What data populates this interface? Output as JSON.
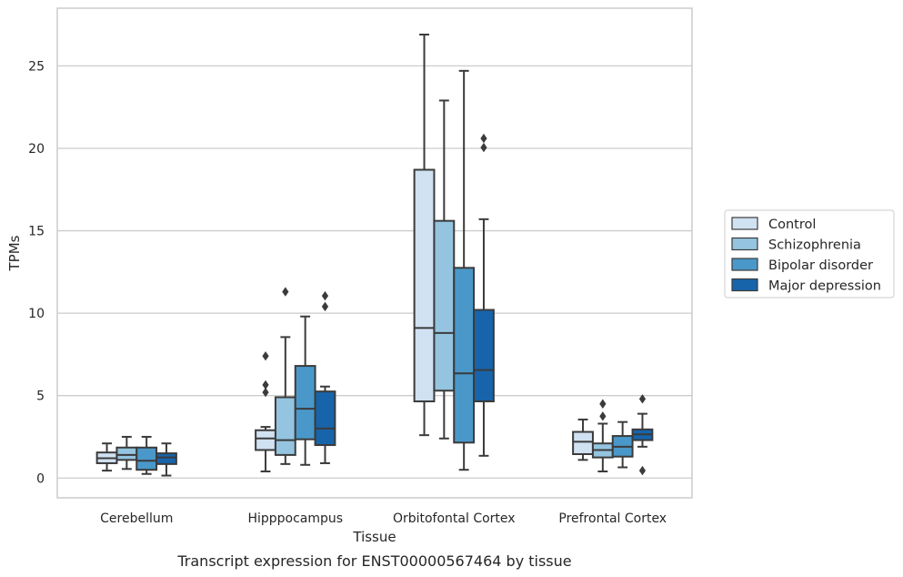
{
  "chart_data": {
    "type": "box",
    "title": "",
    "caption": "Transcript expression for ENST00000567464 by tissue",
    "xlabel": "Tissue",
    "ylabel": "TPMs",
    "ylim": [
      -1.2,
      28.5
    ],
    "yticks": [
      0,
      5,
      10,
      15,
      20,
      25
    ],
    "grid": "horizontal",
    "legend_position": "right",
    "categories": [
      "Cerebellum",
      "Hipppocampus",
      "Orbitofontal Cortex",
      "Prefrontal Cortex"
    ],
    "series": [
      {
        "name": "Control",
        "color": "#d0e1f2",
        "boxes": [
          {
            "whisker_low": 0.45,
            "q1": 0.9,
            "median": 1.2,
            "q3": 1.55,
            "whisker_high": 2.1,
            "outliers": []
          },
          {
            "whisker_low": 0.4,
            "q1": 1.7,
            "median": 2.4,
            "q3": 2.9,
            "whisker_high": 3.1,
            "outliers": [
              5.2,
              5.65,
              7.4
            ]
          },
          {
            "whisker_low": 2.6,
            "q1": 4.65,
            "median": 9.1,
            "q3": 18.7,
            "whisker_high": 26.9,
            "outliers": []
          },
          {
            "whisker_low": 1.1,
            "q1": 1.45,
            "median": 2.2,
            "q3": 2.8,
            "whisker_high": 3.55,
            "outliers": []
          }
        ]
      },
      {
        "name": "Schizophrenia",
        "color": "#94c4df",
        "boxes": [
          {
            "whisker_low": 0.55,
            "q1": 1.1,
            "median": 1.4,
            "q3": 1.85,
            "whisker_high": 2.5,
            "outliers": []
          },
          {
            "whisker_low": 0.85,
            "q1": 1.4,
            "median": 2.3,
            "q3": 4.9,
            "whisker_high": 8.55,
            "outliers": [
              11.3
            ]
          },
          {
            "whisker_low": 2.4,
            "q1": 5.3,
            "median": 8.8,
            "q3": 15.6,
            "whisker_high": 22.9,
            "outliers": []
          },
          {
            "whisker_low": 0.4,
            "q1": 1.25,
            "median": 1.7,
            "q3": 2.1,
            "whisker_high": 3.3,
            "outliers": [
              3.75,
              4.5
            ]
          }
        ]
      },
      {
        "name": "Bipolar disorder",
        "color": "#4a98c9",
        "boxes": [
          {
            "whisker_low": 0.25,
            "q1": 0.5,
            "median": 1.05,
            "q3": 1.85,
            "whisker_high": 2.5,
            "outliers": []
          },
          {
            "whisker_low": 0.8,
            "q1": 2.35,
            "median": 4.2,
            "q3": 6.8,
            "whisker_high": 9.8,
            "outliers": []
          },
          {
            "whisker_low": 0.5,
            "q1": 2.15,
            "median": 6.35,
            "q3": 12.75,
            "whisker_high": 24.7,
            "outliers": []
          },
          {
            "whisker_low": 0.65,
            "q1": 1.3,
            "median": 1.9,
            "q3": 2.55,
            "whisker_high": 3.4,
            "outliers": []
          }
        ]
      },
      {
        "name": "Major depression",
        "color": "#1764ab",
        "boxes": [
          {
            "whisker_low": 0.15,
            "q1": 0.85,
            "median": 1.25,
            "q3": 1.5,
            "whisker_high": 2.1,
            "outliers": []
          },
          {
            "whisker_low": 0.9,
            "q1": 2.0,
            "median": 3.0,
            "q3": 5.25,
            "whisker_high": 5.55,
            "outliers": [
              10.4,
              11.05
            ]
          },
          {
            "whisker_low": 1.35,
            "q1": 4.65,
            "median": 6.55,
            "q3": 10.2,
            "whisker_high": 15.7,
            "outliers": [
              20.05,
              20.6
            ]
          },
          {
            "whisker_low": 1.9,
            "q1": 2.3,
            "median": 2.65,
            "q3": 2.95,
            "whisker_high": 3.9,
            "outliers": [
              0.45,
              4.8
            ]
          }
        ]
      }
    ]
  }
}
